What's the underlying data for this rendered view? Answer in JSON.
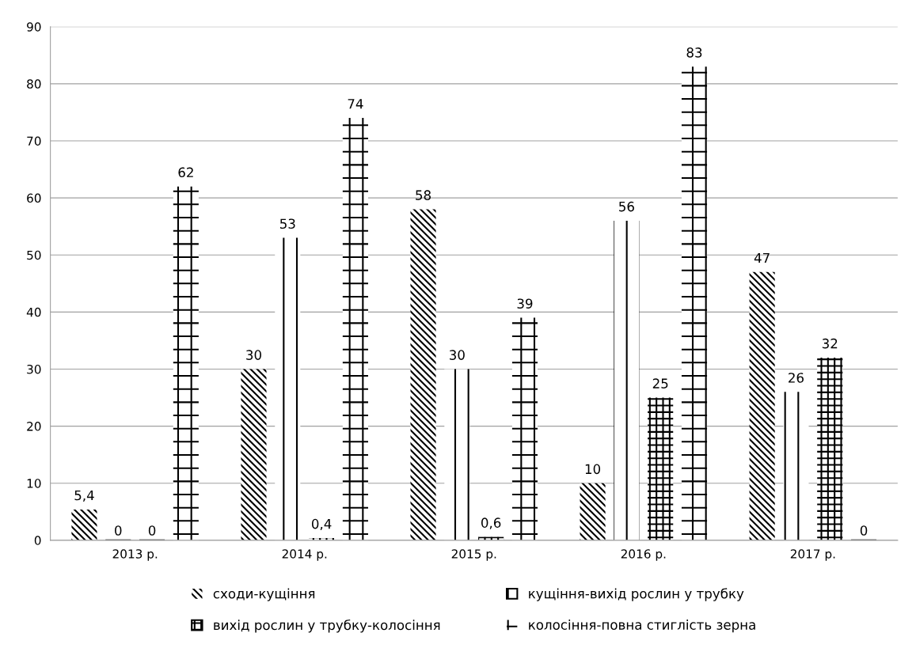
{
  "chart_data": {
    "type": "bar",
    "categories": [
      "2013 р.",
      "2014 р.",
      "2015 р.",
      "2016 р.",
      "2017 р."
    ],
    "series": [
      {
        "name": "сходи-кущіння",
        "color": "#000000",
        "values": [
          5.4,
          30,
          58,
          10,
          47
        ],
        "value_labels": [
          "5,4",
          "30",
          "58",
          "10",
          "47"
        ]
      },
      {
        "name": "кущіння-вихід рослин у трубку",
        "color": "#000000",
        "values": [
          0,
          53,
          30,
          56,
          26
        ],
        "value_labels": [
          "0",
          "53",
          "30",
          "56",
          "26"
        ]
      },
      {
        "name": "вихід рослин у трубку-колосіння",
        "color": "#000000",
        "values": [
          0,
          0.4,
          0.6,
          25,
          32
        ],
        "value_labels": [
          "0",
          "0,4",
          "0,6",
          "25",
          "32"
        ]
      },
      {
        "name": "колосіння-повна стиглість зерна",
        "color": "#000000",
        "values": [
          62,
          74,
          39,
          83,
          0
        ],
        "value_labels": [
          "62",
          "74",
          "39",
          "83",
          "0"
        ]
      }
    ],
    "ylim": [
      0,
      90
    ],
    "yticks": [
      0,
      10,
      20,
      30,
      40,
      50,
      60,
      70,
      80,
      90
    ],
    "grid": "y",
    "legend": "bottom"
  }
}
